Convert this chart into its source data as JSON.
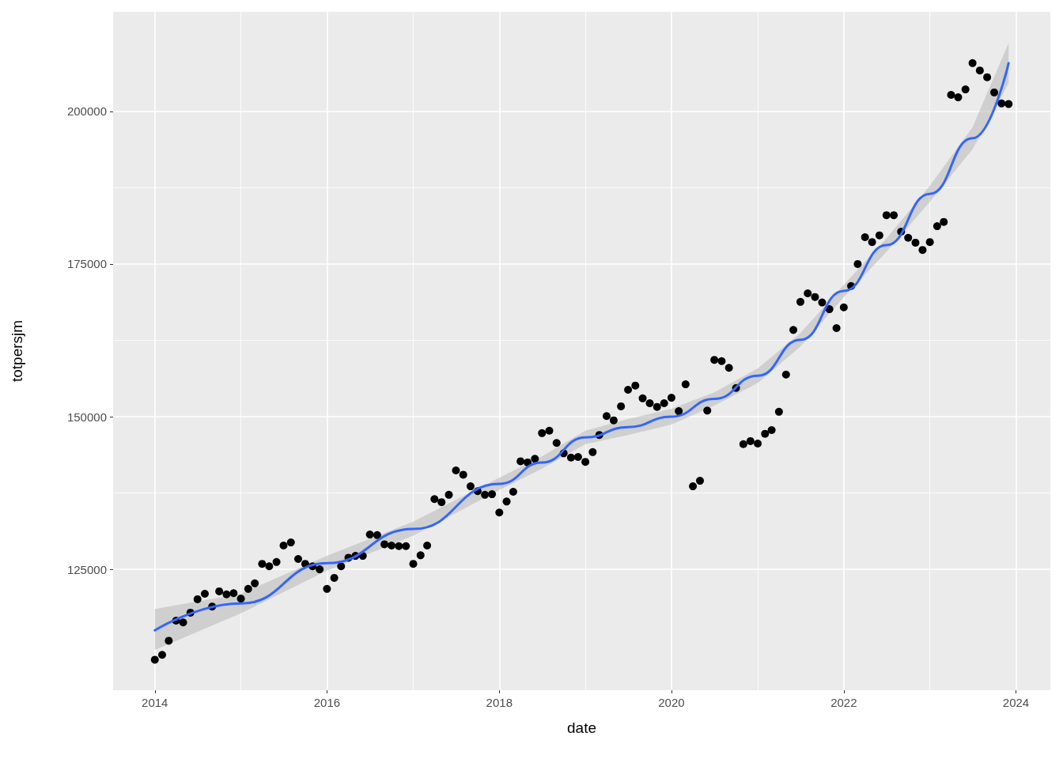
{
  "chart_data": {
    "type": "scatter",
    "xlabel": "date",
    "ylabel": "totpersjm",
    "grid": true,
    "xlim": [
      "2013-07-08",
      "2024-05-26"
    ],
    "xticks": [
      {
        "value": "2014",
        "label": "2014"
      },
      {
        "value": "2016",
        "label": "2016"
      },
      {
        "value": "2018",
        "label": "2018"
      },
      {
        "value": "2020",
        "label": "2020"
      },
      {
        "value": "2022",
        "label": "2022"
      },
      {
        "value": "2024",
        "label": "2024"
      }
    ],
    "ylim": [
      105200,
      216300
    ],
    "yticks": [
      125000,
      150000,
      175000,
      200000
    ],
    "series": [
      {
        "marker": "circle",
        "color": "#000000",
        "x": [
          "2014-01",
          "2014-02",
          "2014-03",
          "2014-04",
          "2014-05",
          "2014-06",
          "2014-07",
          "2014-08",
          "2014-09",
          "2014-10",
          "2014-11",
          "2014-12",
          "2015-01",
          "2015-02",
          "2015-03",
          "2015-04",
          "2015-05",
          "2015-06",
          "2015-07",
          "2015-08",
          "2015-09",
          "2015-10",
          "2015-11",
          "2015-12",
          "2016-01",
          "2016-02",
          "2016-03",
          "2016-04",
          "2016-05",
          "2016-06",
          "2016-07",
          "2016-08",
          "2016-09",
          "2016-10",
          "2016-11",
          "2016-12",
          "2017-01",
          "2017-02",
          "2017-03",
          "2017-04",
          "2017-05",
          "2017-06",
          "2017-07",
          "2017-08",
          "2017-09",
          "2017-10",
          "2017-11",
          "2017-12",
          "2018-01",
          "2018-02",
          "2018-03",
          "2018-04",
          "2018-05",
          "2018-06",
          "2018-07",
          "2018-08",
          "2018-09",
          "2018-10",
          "2018-11",
          "2018-12",
          "2019-01",
          "2019-02",
          "2019-03",
          "2019-04",
          "2019-05",
          "2019-06",
          "2019-07",
          "2019-08",
          "2019-09",
          "2019-10",
          "2019-11",
          "2019-12",
          "2020-01",
          "2020-02",
          "2020-03",
          "2020-04",
          "2020-05",
          "2020-06",
          "2020-07",
          "2020-08",
          "2020-09",
          "2020-10",
          "2020-11",
          "2020-12",
          "2021-01",
          "2021-02",
          "2021-03",
          "2021-04",
          "2021-05",
          "2021-06",
          "2021-07",
          "2021-08",
          "2021-09",
          "2021-10",
          "2021-11",
          "2021-12",
          "2022-01",
          "2022-02",
          "2022-03",
          "2022-04",
          "2022-05",
          "2022-06",
          "2022-07",
          "2022-08",
          "2022-09",
          "2022-10",
          "2022-11",
          "2022-12",
          "2023-01",
          "2023-02",
          "2023-03",
          "2023-04",
          "2023-05",
          "2023-06",
          "2023-07",
          "2023-08",
          "2023-09",
          "2023-10",
          "2023-11",
          "2023-12"
        ],
        "values": [
          110200,
          111000,
          113300,
          116600,
          116300,
          117900,
          120100,
          121000,
          118900,
          121400,
          120900,
          121100,
          120200,
          121800,
          122700,
          125900,
          125500,
          126200,
          128900,
          129400,
          126700,
          125900,
          125500,
          125000,
          121800,
          123600,
          125500,
          126900,
          127200,
          127200,
          130700,
          130600,
          129100,
          128900,
          128800,
          128800,
          125900,
          127300,
          128900,
          136500,
          136000,
          137200,
          141200,
          140500,
          138600,
          137800,
          137200,
          137300,
          134300,
          136100,
          137700,
          142700,
          142500,
          143100,
          147300,
          147700,
          145700,
          144000,
          143300,
          143400,
          142600,
          144200,
          147000,
          150100,
          149400,
          151700,
          154400,
          155100,
          153000,
          152200,
          151600,
          152200,
          153100,
          150900,
          155300,
          138600,
          139500,
          151000,
          159300,
          159100,
          158000,
          154700,
          145500,
          146000,
          145600,
          147200,
          147800,
          150800,
          156900,
          164200,
          168800,
          170200,
          169600,
          168700,
          167600,
          164500,
          167900,
          171400,
          175000,
          179400,
          178600,
          179700,
          183000,
          183000,
          180300,
          179300,
          178500,
          177300,
          178600,
          181200,
          181900,
          202700,
          202300,
          203600,
          207900,
          206700,
          205600,
          203100,
          201300,
          201200
        ]
      },
      {
        "type": "line",
        "marker": "none",
        "line_style": "solid",
        "color": "#3366ff",
        "x": [
          "2014-01",
          "2015-01",
          "2016-01",
          "2017-01",
          "2018-01",
          "2018-07",
          "2019-01",
          "2019-07",
          "2020-01",
          "2020-07",
          "2021-01",
          "2021-07",
          "2022-01",
          "2022-07",
          "2023-01",
          "2023-07",
          "2023-12"
        ],
        "values": [
          115000,
          119400,
          126000,
          131600,
          139000,
          142500,
          146600,
          148300,
          150000,
          152900,
          156700,
          162600,
          170600,
          178100,
          186500,
          195600,
          207900
        ],
        "lower": [
          111800,
          117800,
          124800,
          130500,
          138000,
          141500,
          145500,
          147000,
          148700,
          151800,
          155500,
          161500,
          169600,
          177000,
          185200,
          193800,
          204600
        ],
        "upper": [
          118500,
          121000,
          127200,
          132800,
          140000,
          143500,
          147700,
          149600,
          151300,
          154000,
          157900,
          163700,
          171600,
          179200,
          187800,
          197400,
          211200
        ]
      }
    ]
  }
}
